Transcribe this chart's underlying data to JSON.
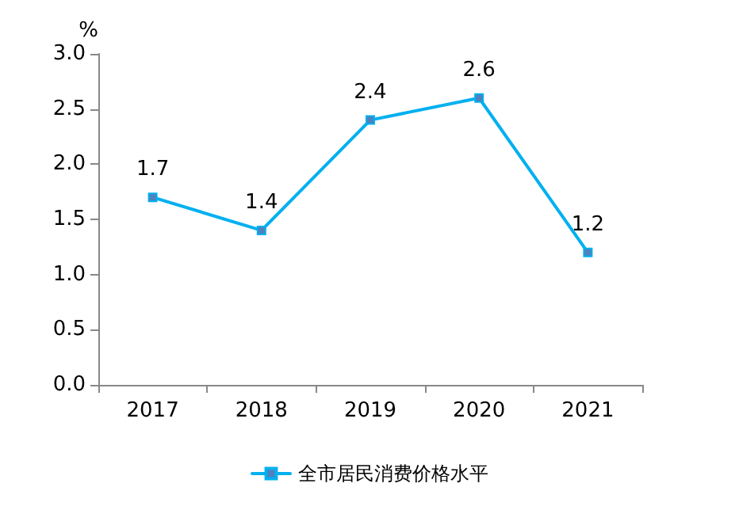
{
  "chart_data": {
    "type": "line",
    "ylabel": "%",
    "categories": [
      "2017",
      "2018",
      "2019",
      "2020",
      "2021"
    ],
    "series": [
      {
        "name": "全市居民消费价格水平",
        "color": "#00b0f0",
        "values": [
          1.7,
          1.4,
          2.4,
          2.6,
          1.2
        ]
      }
    ],
    "ylim": [
      0,
      3
    ],
    "yticks": [
      {
        "value": 0,
        "label": "0.0"
      },
      {
        "value": 0.5,
        "label": "0.5"
      },
      {
        "value": 1,
        "label": "1.0"
      },
      {
        "value": 1.5,
        "label": "1.5"
      },
      {
        "value": 2,
        "label": "2.0"
      },
      {
        "value": 2.5,
        "label": "2.5"
      },
      {
        "value": 3,
        "label": "3.0"
      }
    ],
    "grid": false,
    "legend": "bottom",
    "marker": "square",
    "line_style": "solid",
    "data_labels": true
  }
}
